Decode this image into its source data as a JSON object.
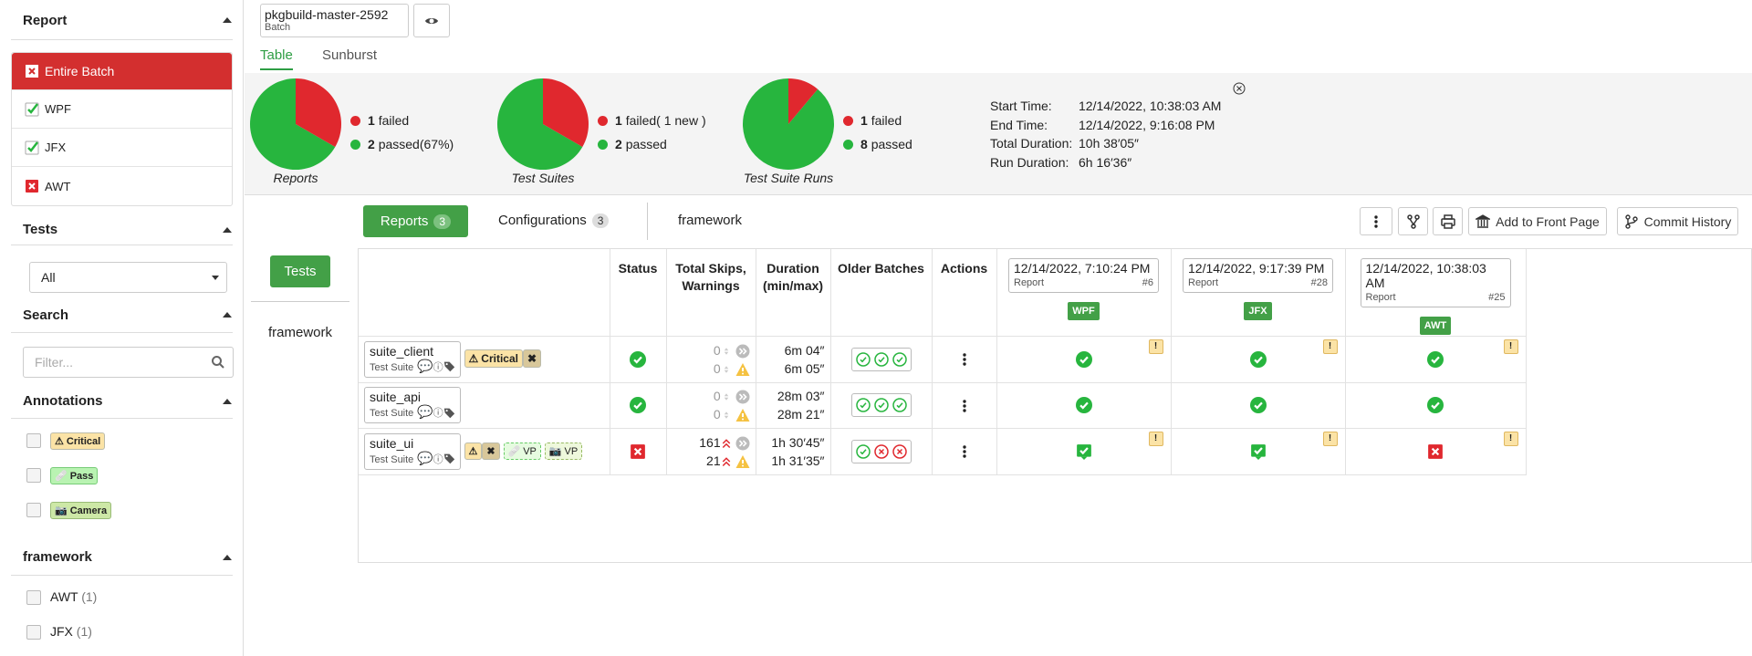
{
  "sidebar": {
    "report": {
      "title": "Report",
      "items": [
        "Entire Batch",
        "WPF",
        "JFX",
        "AWT"
      ]
    },
    "tests": {
      "title": "Tests",
      "selected": "All"
    },
    "search": {
      "title": "Search",
      "placeholder": "Filter..."
    },
    "annotations": {
      "title": "Annotations",
      "items": [
        "Critical",
        "Pass",
        "Camera"
      ]
    },
    "framework": {
      "title": "framework",
      "items": [
        {
          "name": "AWT",
          "count": "(1)"
        },
        {
          "name": "JFX",
          "count": "(1)"
        }
      ]
    }
  },
  "batch": {
    "name": "pkgbuild-master-2592",
    "type": "Batch"
  },
  "tabs": [
    "Table",
    "Sunburst"
  ],
  "summary": {
    "colors": {
      "failed": "#e0282e",
      "passed": "#27b53e"
    },
    "charts": [
      {
        "label": "Reports",
        "failed": 1,
        "failed_text": "failed",
        "passed": 2,
        "passed_text": "passed(67%)"
      },
      {
        "label": "Test Suites",
        "failed": 1,
        "failed_text": "failed( 1 new )",
        "passed": 2,
        "passed_text": "passed"
      },
      {
        "label": "Test Suite Runs",
        "failed": 1,
        "failed_text": "failed",
        "passed": 8,
        "passed_text": "passed"
      }
    ]
  },
  "times": [
    {
      "label": "Start Time:",
      "value": "12/14/2022, 10:38:03 AM"
    },
    {
      "label": "End Time:",
      "value": "12/14/2022, 9:16:08 PM"
    },
    {
      "label": "Total Duration:",
      "value": "10h 38′05″"
    },
    {
      "label": "Run Duration:",
      "value": "6h 16′36″"
    }
  ],
  "toolbar": {
    "reports": "Reports",
    "reports_count": 3,
    "configurations": "Configurations",
    "configurations_count": 3,
    "group": "framework",
    "add": "Add to Front Page",
    "history": "Commit History"
  },
  "tree": {
    "button": "Tests",
    "node": "framework"
  },
  "table": {
    "headers": [
      "Status",
      "Total Skips, Warnings",
      "Duration (min/max)",
      "Older Batches",
      "Actions"
    ],
    "reports": [
      {
        "date": "12/14/2022, 7:10:24 PM",
        "type": "Report",
        "id": "#6",
        "name": "WPF"
      },
      {
        "date": "12/14/2022, 9:17:39 PM",
        "type": "Report",
        "id": "#28",
        "name": "JFX"
      },
      {
        "date": "12/14/2022, 10:38:03 AM",
        "type": "Report",
        "id": "#25",
        "name": "AWT"
      }
    ],
    "rows": [
      {
        "name": "suite_client",
        "type": "Test Suite",
        "badge": "Critical",
        "skips": 0,
        "warnings": 0,
        "min": "6m 04″",
        "max": "6m 05″"
      },
      {
        "name": "suite_api",
        "type": "Test Suite",
        "skips": 0,
        "warnings": 0,
        "min": "28m 03″",
        "max": "28m 21″"
      },
      {
        "name": "suite_ui",
        "type": "Test Suite",
        "tags": [
          "VP",
          "VP"
        ],
        "skips": 161,
        "warnings": 21,
        "min": "1h 30′45″",
        "max": "1h 31′35″"
      }
    ]
  }
}
